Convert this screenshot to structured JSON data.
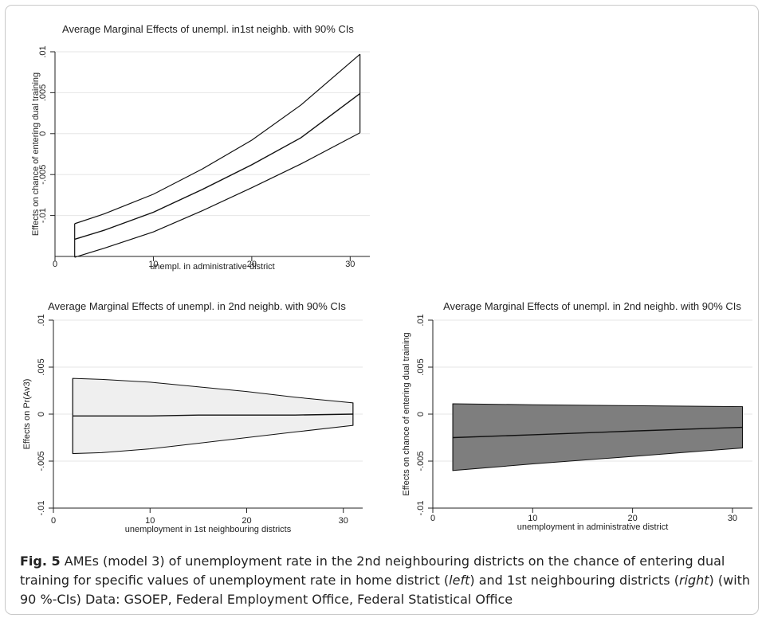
{
  "chart_data": [
    {
      "type": "line",
      "title": "Average Marginal Effects of unempl. in1st neighb. with 90% CIs",
      "xlabel": "unempl. in administrative district",
      "ylabel": "Effects on chance of entering dual training",
      "xlim": [
        0,
        32
      ],
      "ylim": [
        -0.015,
        0.01
      ],
      "xticks": [
        0,
        10,
        20,
        30
      ],
      "xtick_labels": [
        "0",
        "10",
        "20",
        "30"
      ],
      "yticks": [
        -0.01,
        -0.005,
        0,
        0.005,
        0.01
      ],
      "ytick_labels": [
        "-.01",
        "-.005",
        "0",
        ".005",
        ".01"
      ],
      "grid": true,
      "ci_style": "lines",
      "x": [
        2,
        5,
        10,
        15,
        20,
        25,
        31
      ],
      "series": [
        {
          "values": [
            -0.0129,
            -0.0118,
            -0.0096,
            -0.0068,
            -0.0038,
            -0.0005,
            0.0049
          ]
        },
        {
          "values": [
            -0.011,
            -0.0098,
            -0.0074,
            -0.0043,
            -0.0008,
            0.0035,
            0.0097
          ]
        },
        {
          "values": [
            -0.0151,
            -0.014,
            -0.012,
            -0.0094,
            -0.0066,
            -0.0037,
            0.0001
          ]
        }
      ]
    },
    {
      "type": "area",
      "title": "Average Marginal Effects of unempl. in 2nd neighb. with 90% CIs",
      "xlabel": "unemployment in 1st neighbouring districts",
      "ylabel": "Effects on Pr(Av3)",
      "xlim": [
        0,
        32
      ],
      "ylim": [
        -0.01,
        0.01
      ],
      "xticks": [
        0,
        10,
        20,
        30
      ],
      "xtick_labels": [
        "0",
        "10",
        "20",
        "30"
      ],
      "yticks": [
        -0.01,
        -0.005,
        0,
        0.005,
        0.01
      ],
      "ytick_labels": [
        "-.01",
        "-.005",
        "0",
        ".005",
        ".01"
      ],
      "grid": true,
      "ci_style": "band",
      "band_color": "#efefef",
      "x": [
        2,
        5,
        10,
        15,
        20,
        25,
        31
      ],
      "series": [
        {
          "values": [
            -0.0002,
            -0.0002,
            -0.0002,
            -0.0001,
            -0.0001,
            -0.0001,
            0.0
          ]
        },
        {
          "values": [
            0.0038,
            0.0037,
            0.0034,
            0.0029,
            0.0024,
            0.0018,
            0.0012
          ]
        },
        {
          "values": [
            -0.0042,
            -0.0041,
            -0.0037,
            -0.0031,
            -0.0025,
            -0.0019,
            -0.0012
          ]
        }
      ]
    },
    {
      "type": "area",
      "title": "Average Marginal Effects of unempl. in 2nd neighb. with 90% CIs",
      "xlabel": "unemployment in administrative district",
      "ylabel": "Effects on chance of entering dual training",
      "xlim": [
        0,
        32
      ],
      "ylim": [
        -0.01,
        0.01
      ],
      "xticks": [
        0,
        10,
        20,
        30
      ],
      "xtick_labels": [
        "0",
        "10",
        "20",
        "30"
      ],
      "yticks": [
        -0.01,
        -0.005,
        0,
        0.005,
        0.01
      ],
      "ytick_labels": [
        "-.01",
        "-.005",
        "0",
        ".005",
        ".01"
      ],
      "grid": true,
      "ci_style": "band",
      "band_color": "#7e7e7e",
      "x": [
        2,
        10,
        20,
        31
      ],
      "series": [
        {
          "values": [
            -0.0025,
            -0.0022,
            -0.0018,
            -0.0014
          ]
        },
        {
          "values": [
            0.0011,
            0.001,
            0.0009,
            0.0008
          ]
        },
        {
          "values": [
            -0.006,
            -0.0053,
            -0.0045,
            -0.0036
          ]
        }
      ]
    }
  ],
  "caption": {
    "fig_label": "Fig. 5",
    "part1": "  AMEs (model 3) of unemployment rate in the 2nd neighbouring districts on the chance of entering dual training for specific values of unemployment rate in home district (",
    "left": "left",
    "part2": ") and 1st neighbouring districts (",
    "right": "right",
    "part3": ") (with 90 %-CIs) Data: GSOEP, Federal Employment Office, Federal Statistical Office"
  }
}
